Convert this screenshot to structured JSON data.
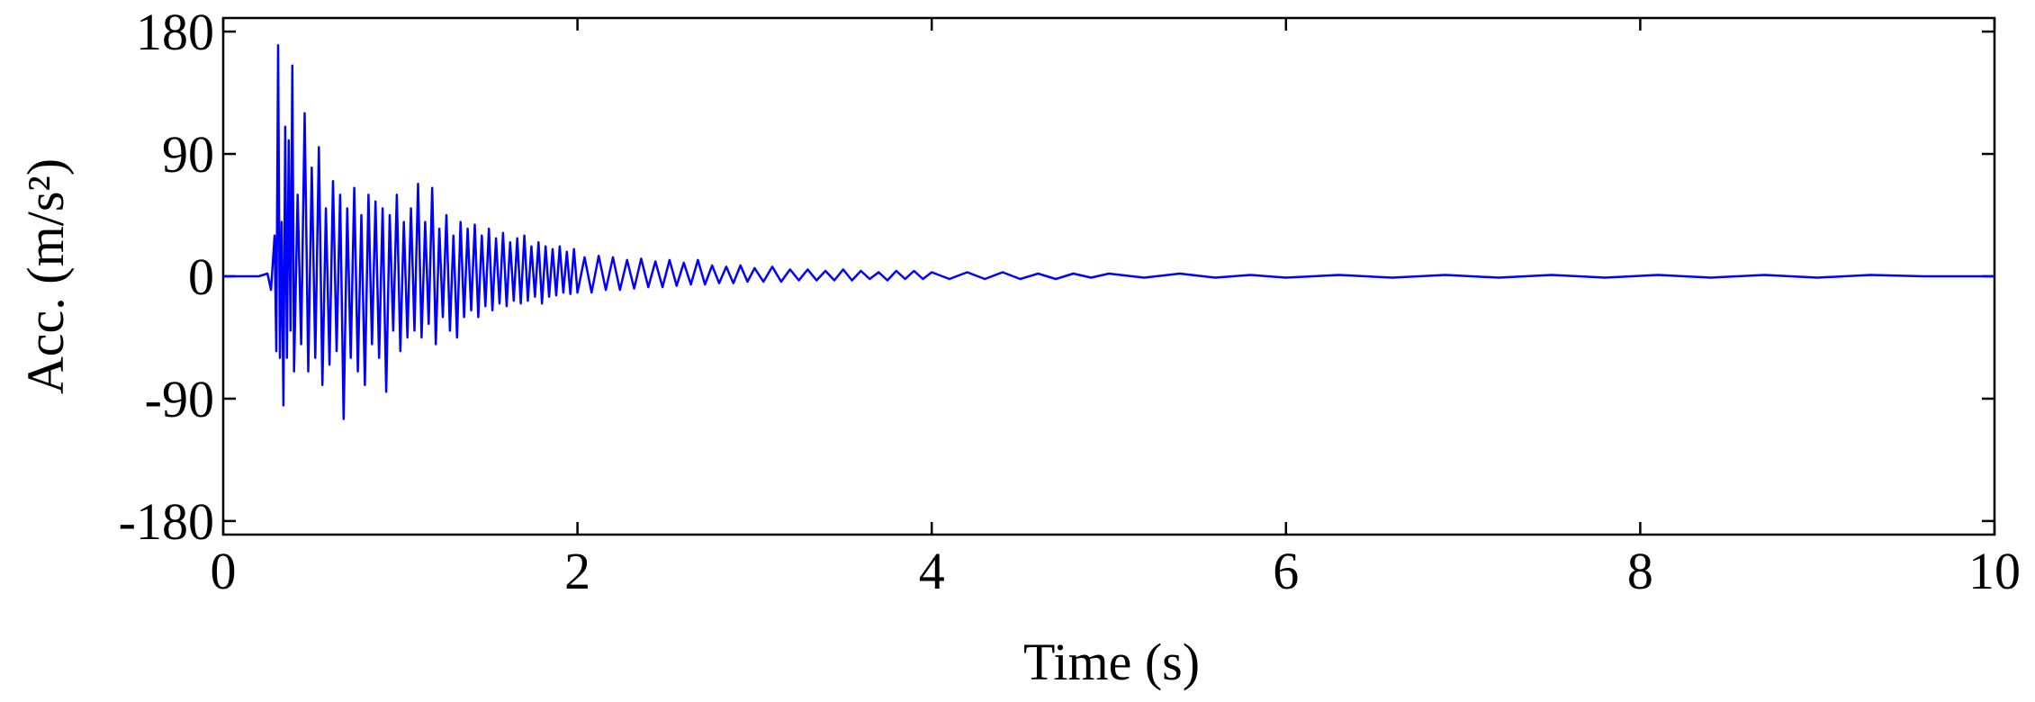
{
  "chart_data": {
    "type": "line",
    "xlabel": "Time (s)",
    "ylabel": "Acc. (m/s²)",
    "xlim": [
      0,
      10
    ],
    "xticks": [
      0,
      2,
      4,
      6,
      8,
      10
    ],
    "ylim": [
      -190,
      190
    ],
    "yticks": [
      -180,
      -90,
      0,
      90,
      180
    ],
    "grid": false,
    "series": [
      {
        "color": "#0000ff",
        "x": [
          0,
          0.1,
          0.2,
          0.25,
          0.27,
          0.29,
          0.3,
          0.31,
          0.32,
          0.33,
          0.34,
          0.35,
          0.36,
          0.37,
          0.38,
          0.39,
          0.4,
          0.42,
          0.44,
          0.46,
          0.48,
          0.5,
          0.52,
          0.54,
          0.56,
          0.58,
          0.6,
          0.62,
          0.64,
          0.66,
          0.68,
          0.7,
          0.72,
          0.74,
          0.76,
          0.78,
          0.8,
          0.82,
          0.84,
          0.86,
          0.88,
          0.9,
          0.92,
          0.94,
          0.96,
          0.98,
          1.0,
          1.02,
          1.04,
          1.06,
          1.08,
          1.1,
          1.12,
          1.14,
          1.16,
          1.18,
          1.2,
          1.22,
          1.24,
          1.26,
          1.28,
          1.3,
          1.32,
          1.34,
          1.36,
          1.38,
          1.4,
          1.42,
          1.44,
          1.46,
          1.48,
          1.5,
          1.52,
          1.54,
          1.56,
          1.58,
          1.6,
          1.62,
          1.64,
          1.66,
          1.68,
          1.7,
          1.72,
          1.74,
          1.76,
          1.78,
          1.8,
          1.82,
          1.84,
          1.86,
          1.88,
          1.9,
          1.92,
          1.94,
          1.96,
          1.98,
          2.0,
          2.04,
          2.08,
          2.12,
          2.16,
          2.2,
          2.24,
          2.28,
          2.32,
          2.36,
          2.4,
          2.44,
          2.48,
          2.52,
          2.56,
          2.6,
          2.64,
          2.68,
          2.72,
          2.76,
          2.8,
          2.84,
          2.88,
          2.92,
          2.96,
          3.0,
          3.05,
          3.1,
          3.15,
          3.2,
          3.25,
          3.3,
          3.35,
          3.4,
          3.45,
          3.5,
          3.55,
          3.6,
          3.65,
          3.7,
          3.75,
          3.8,
          3.85,
          3.9,
          3.95,
          4.0,
          4.1,
          4.2,
          4.3,
          4.4,
          4.5,
          4.6,
          4.7,
          4.8,
          4.9,
          5.0,
          5.2,
          5.4,
          5.6,
          5.8,
          6.0,
          6.3,
          6.6,
          6.9,
          7.2,
          7.5,
          7.8,
          8.1,
          8.4,
          8.7,
          9.0,
          9.3,
          9.6,
          10
        ],
        "values": [
          0,
          0,
          0,
          2,
          -10,
          30,
          -55,
          170,
          -60,
          40,
          -95,
          110,
          -60,
          100,
          -40,
          155,
          -70,
          60,
          -50,
          120,
          -70,
          80,
          -60,
          95,
          -80,
          50,
          -65,
          70,
          -55,
          60,
          -105,
          50,
          -60,
          65,
          -70,
          45,
          -80,
          60,
          -50,
          55,
          -60,
          50,
          -85,
          45,
          -40,
          60,
          -55,
          40,
          -45,
          50,
          -40,
          68,
          -45,
          40,
          -35,
          65,
          -50,
          35,
          -30,
          45,
          -40,
          30,
          -45,
          40,
          -30,
          35,
          -25,
          38,
          -30,
          30,
          -22,
          35,
          -25,
          28,
          -20,
          32,
          -22,
          25,
          -18,
          28,
          -20,
          30,
          -18,
          22,
          -15,
          25,
          -20,
          22,
          -15,
          20,
          -14,
          22,
          -12,
          18,
          -13,
          20,
          -12,
          14,
          -12,
          15,
          -10,
          14,
          -10,
          12,
          -9,
          13,
          -8,
          11,
          -8,
          12,
          -7,
          10,
          -6,
          12,
          -6,
          8,
          -5,
          7,
          -5,
          8,
          -4,
          6,
          -4,
          7,
          -4,
          5,
          -3,
          5,
          -3,
          4,
          -3,
          5,
          -3,
          4,
          -2,
          3,
          -3,
          4,
          -2,
          4,
          -2,
          3,
          -2,
          3,
          -2,
          3,
          -2,
          2,
          -2,
          2,
          -1,
          2,
          -1,
          2,
          -1,
          1,
          -1,
          1,
          -1,
          1,
          -1,
          1,
          -1,
          1,
          -1,
          1,
          -1,
          1,
          0,
          0
        ]
      }
    ]
  }
}
